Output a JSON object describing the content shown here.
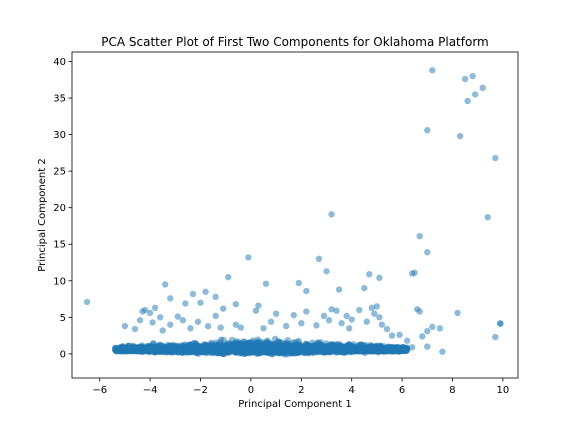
{
  "chart_data": {
    "type": "scatter",
    "title": "PCA Scatter Plot of First Two Components for Oklahoma Platform",
    "xlabel": "Principal Component 1",
    "ylabel": "Principal Component 2",
    "xlim": [
      -7.1,
      10.6
    ],
    "ylim": [
      -3.3,
      41.3
    ],
    "xticks": [
      -6,
      -4,
      -2,
      0,
      2,
      4,
      6,
      8,
      10
    ],
    "xtick_labels": [
      "−6",
      "−4",
      "−2",
      "0",
      "2",
      "4",
      "6",
      "8",
      "10"
    ],
    "yticks": [
      0,
      5,
      10,
      15,
      20,
      25,
      30,
      35,
      40
    ],
    "ytick_labels": [
      "0",
      "5",
      "10",
      "15",
      "20",
      "25",
      "30",
      "35",
      "40"
    ],
    "grid": false,
    "marker_color": "#1f77b4",
    "marker_alpha": 0.5,
    "dense_cluster": {
      "x_range": [
        -5.4,
        6.2
      ],
      "y_range": [
        -0.6,
        3.2
      ],
      "approx_points": 3000
    },
    "points": [
      [
        -6.5,
        7.1
      ],
      [
        7.2,
        38.8
      ],
      [
        8.8,
        38.0
      ],
      [
        8.5,
        37.6
      ],
      [
        9.2,
        36.4
      ],
      [
        8.9,
        35.5
      ],
      [
        8.6,
        34.6
      ],
      [
        7.0,
        30.6
      ],
      [
        8.3,
        29.8
      ],
      [
        9.7,
        26.8
      ],
      [
        9.4,
        18.7
      ],
      [
        3.2,
        19.1
      ],
      [
        6.7,
        16.1
      ],
      [
        7.0,
        13.9
      ],
      [
        -0.1,
        13.2
      ],
      [
        2.7,
        13.0
      ],
      [
        6.4,
        11.0
      ],
      [
        6.5,
        11.1
      ],
      [
        3.0,
        11.3
      ],
      [
        4.7,
        10.9
      ],
      [
        -0.9,
        10.5
      ],
      [
        5.1,
        10.4
      ],
      [
        1.9,
        9.7
      ],
      [
        4.5,
        9.0
      ],
      [
        0.6,
        9.6
      ],
      [
        3.5,
        8.8
      ],
      [
        2.2,
        8.6
      ],
      [
        -3.4,
        9.5
      ],
      [
        -1.8,
        8.5
      ],
      [
        -2.3,
        8.2
      ],
      [
        -3.2,
        7.6
      ],
      [
        -1.4,
        7.8
      ],
      [
        -2.0,
        7.0
      ],
      [
        -2.6,
        6.9
      ],
      [
        -0.6,
        6.8
      ],
      [
        0.3,
        6.6
      ],
      [
        -3.8,
        6.3
      ],
      [
        -4.2,
        6.0
      ],
      [
        -4.3,
        5.8
      ],
      [
        -4.0,
        5.6
      ],
      [
        -1.1,
        6.2
      ],
      [
        0.2,
        5.9
      ],
      [
        2.2,
        5.8
      ],
      [
        3.2,
        6.1
      ],
      [
        3.4,
        5.9
      ],
      [
        4.3,
        6.0
      ],
      [
        4.8,
        6.3
      ],
      [
        5.0,
        6.5
      ],
      [
        6.6,
        6.1
      ],
      [
        6.7,
        5.8
      ],
      [
        8.2,
        5.6
      ],
      [
        1.0,
        5.5
      ],
      [
        2.9,
        5.2
      ],
      [
        5.1,
        5.0
      ],
      [
        -2.9,
        5.1
      ],
      [
        -3.6,
        5.0
      ],
      [
        -1.4,
        5.2
      ],
      [
        7.2,
        3.7
      ],
      [
        7.5,
        3.5
      ],
      [
        9.9,
        4.1
      ],
      [
        9.9,
        4.2
      ],
      [
        7.0,
        3.1
      ],
      [
        9.7,
        2.3
      ],
      [
        7.0,
        1.0
      ],
      [
        7.6,
        0.3
      ],
      [
        6.8,
        2.4
      ],
      [
        6.4,
        0.9
      ],
      [
        5.6,
        2.5
      ],
      [
        5.9,
        2.6
      ],
      [
        6.2,
        1.8
      ],
      [
        -5.0,
        3.8
      ],
      [
        -4.6,
        3.4
      ],
      [
        -4.4,
        4.6
      ],
      [
        -3.9,
        4.3
      ],
      [
        -3.2,
        4.0
      ],
      [
        -2.7,
        4.6
      ],
      [
        -2.1,
        4.4
      ],
      [
        -1.7,
        3.8
      ],
      [
        -1.2,
        3.6
      ],
      [
        -0.4,
        3.6
      ],
      [
        0.5,
        3.5
      ],
      [
        1.4,
        3.8
      ],
      [
        2.0,
        4.2
      ],
      [
        2.6,
        3.9
      ],
      [
        3.1,
        4.6
      ],
      [
        3.6,
        4.2
      ],
      [
        4.0,
        4.7
      ],
      [
        4.6,
        4.4
      ],
      [
        5.2,
        4.0
      ],
      [
        5.4,
        3.4
      ],
      [
        3.9,
        3.5
      ],
      [
        1.7,
        5.3
      ],
      [
        0.8,
        4.4
      ],
      [
        -0.6,
        4.0
      ],
      [
        -2.4,
        3.5
      ],
      [
        -3.5,
        3.2
      ],
      [
        4.9,
        5.5
      ],
      [
        3.8,
        5.2
      ]
    ]
  }
}
